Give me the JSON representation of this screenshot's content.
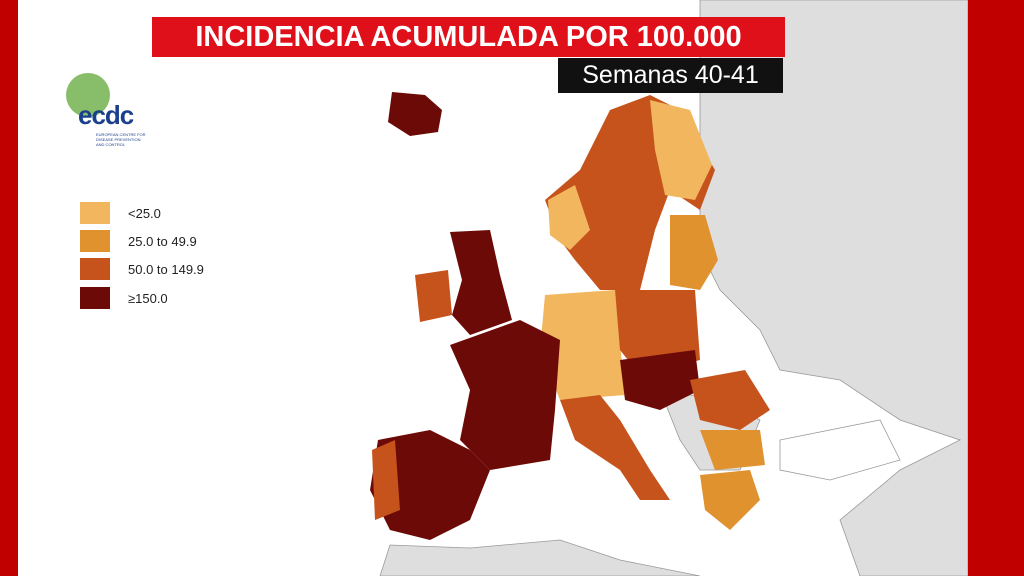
{
  "header": {
    "title": "INCIDENCIA ACUMULADA POR 100.000",
    "subtitle": "Semanas 40-41"
  },
  "logo": {
    "name": "ecdc",
    "caption": "EUROPEAN CENTRE FOR DISEASE PREVENTION AND CONTROL"
  },
  "legend": {
    "items": [
      {
        "label": "<25.0",
        "color": "#f1b65e"
      },
      {
        "label": "25.0 to 49.9",
        "color": "#e0922f"
      },
      {
        "label": "50.0 to 149.9",
        "color": "#c6521c"
      },
      {
        "label": "≥150.0",
        "color": "#6b0a07"
      }
    ]
  }
}
